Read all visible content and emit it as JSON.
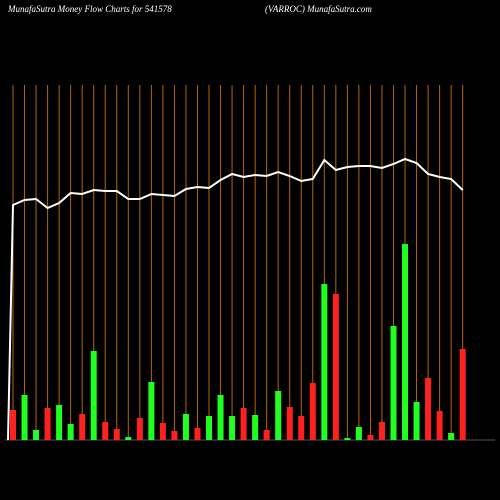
{
  "chart_data": {
    "type": "money-flow",
    "title": "MunafaSutra  Money Flow  Charts for 541578",
    "subtitle": "(VARROC) MunafaSutra.com",
    "ylim": [
      0,
      440
    ],
    "bars": {
      "values": [
        30,
        45,
        10,
        32,
        35,
        16,
        26,
        89,
        18,
        11,
        3,
        22,
        58,
        17,
        9,
        26,
        12,
        24,
        45,
        24,
        32,
        25,
        10,
        49,
        33,
        24,
        57,
        156,
        146,
        2,
        13,
        5,
        18,
        114,
        196,
        38,
        62,
        29,
        7,
        91
      ],
      "colors": [
        "#ff2020",
        "#20ff20",
        "#20ff20",
        "#ff2020",
        "#20ff20",
        "#20ff20",
        "#ff2020",
        "#20ff20",
        "#ff2020",
        "#ff2020",
        "#20ff20",
        "#ff2020",
        "#20ff20",
        "#ff2020",
        "#ff2020",
        "#20ff20",
        "#ff2020",
        "#20ff20",
        "#20ff20",
        "#20ff20",
        "#ff2020",
        "#20ff20",
        "#ff2020",
        "#20ff20",
        "#ff2020",
        "#ff2020",
        "#ff2020",
        "#20ff20",
        "#ff2020",
        "#20ff20",
        "#20ff20",
        "#ff2020",
        "#ff2020",
        "#20ff20",
        "#20ff20",
        "#20ff20",
        "#ff2020",
        "#ff2020",
        "#20ff20",
        "#ff2020"
      ]
    },
    "line": {
      "color": "#ffffff",
      "values": [
        235,
        240,
        241,
        232,
        237,
        247,
        246,
        250,
        249,
        249,
        241,
        241,
        246,
        245,
        244,
        251,
        253,
        252,
        260,
        266,
        263,
        265,
        264,
        268,
        264,
        259,
        261,
        280,
        270,
        273,
        274,
        274,
        272,
        276,
        281,
        277,
        266,
        263,
        261,
        250
      ]
    },
    "grid_color": "#b8660b"
  }
}
